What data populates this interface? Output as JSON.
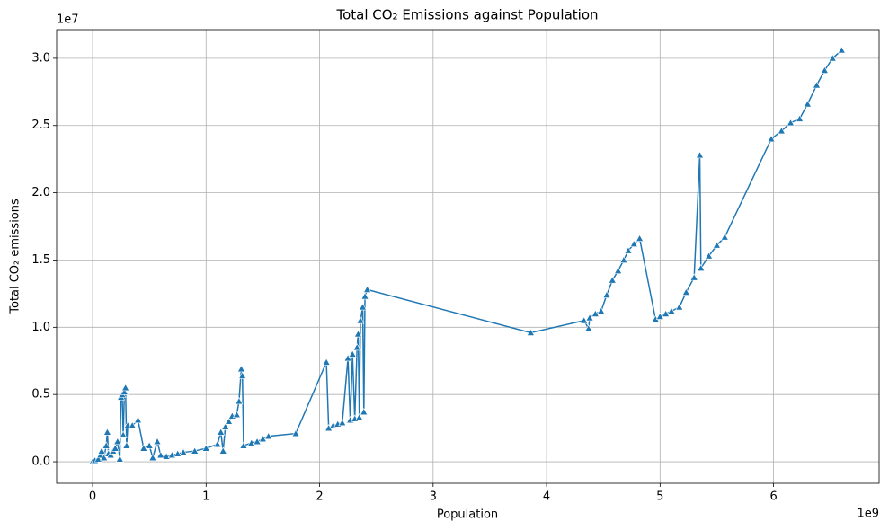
{
  "chart_data": {
    "type": "line",
    "title": "Total CO₂ Emissions against Population",
    "x_label": "Population",
    "y_label": "Total CO₂ emissions",
    "x_offset_text": "1e9",
    "y_offset_text": "1e7",
    "color": "#1f77b4",
    "marker": "triangle",
    "grid": true,
    "xlim": [
      -0.317,
      6.93
    ],
    "ylim": [
      -0.16,
      3.213
    ],
    "xticks": [
      0,
      1,
      2,
      3,
      4,
      5,
      6
    ],
    "yticks": [
      {
        "value": 0,
        "label": "0.0"
      },
      {
        "value": 0.5,
        "label": "0.5"
      },
      {
        "value": 1,
        "label": "1.0"
      },
      {
        "value": 1.5,
        "label": "1.5"
      },
      {
        "value": 2,
        "label": "2.0"
      },
      {
        "value": 2.5,
        "label": "2.5"
      },
      {
        "value": 3,
        "label": "3.0"
      }
    ],
    "x": [
      0,
      0.02,
      0.05,
      0.07,
      0.08,
      0.1,
      0.12,
      0.13,
      0.14,
      0.16,
      0.18,
      0.2,
      0.22,
      0.24,
      0.25,
      0.26,
      0.27,
      0.28,
      0.29,
      0.3,
      0.31,
      0.35,
      0.4,
      0.45,
      0.5,
      0.53,
      0.57,
      0.6,
      0.65,
      0.7,
      0.75,
      0.8,
      0.9,
      1.0,
      1.1,
      1.13,
      1.15,
      1.17,
      1.2,
      1.23,
      1.27,
      1.29,
      1.31,
      1.32,
      1.33,
      1.4,
      1.45,
      1.5,
      1.55,
      1.79,
      2.06,
      2.08,
      2.12,
      2.16,
      2.2,
      2.25,
      2.27,
      2.29,
      2.31,
      2.33,
      2.34,
      2.35,
      2.36,
      2.38,
      2.39,
      2.4,
      2.42,
      3.86,
      4.33,
      4.37,
      4.38,
      4.43,
      4.48,
      4.53,
      4.58,
      4.63,
      4.68,
      4.72,
      4.77,
      4.82,
      4.96,
      5.0,
      5.05,
      5.1,
      5.17,
      5.23,
      5.3,
      5.35,
      5.36,
      5.43,
      5.5,
      5.57,
      5.98,
      6.07,
      6.15,
      6.23,
      6.3,
      6.38,
      6.45,
      6.52,
      6.6
    ],
    "values": [
      0,
      0.01,
      0.02,
      0.05,
      0.08,
      0.03,
      0.12,
      0.22,
      0.06,
      0.05,
      0.08,
      0.1,
      0.15,
      0.02,
      0.48,
      0.5,
      0.2,
      0.52,
      0.55,
      0.12,
      0.27,
      0.27,
      0.31,
      0.1,
      0.12,
      0.03,
      0.15,
      0.05,
      0.04,
      0.05,
      0.06,
      0.07,
      0.08,
      0.1,
      0.13,
      0.22,
      0.08,
      0.26,
      0.3,
      0.34,
      0.35,
      0.45,
      0.69,
      0.64,
      0.12,
      0.14,
      0.15,
      0.17,
      0.19,
      0.21,
      0.74,
      0.25,
      0.27,
      0.28,
      0.29,
      0.77,
      0.31,
      0.8,
      0.32,
      0.85,
      0.95,
      0.33,
      1.05,
      1.15,
      0.37,
      1.23,
      1.28,
      0.96,
      1.05,
      0.99,
      1.07,
      1.1,
      1.12,
      1.24,
      1.35,
      1.42,
      1.5,
      1.57,
      1.62,
      1.66,
      1.06,
      1.08,
      1.1,
      1.12,
      1.15,
      1.26,
      1.37,
      2.28,
      1.44,
      1.53,
      1.61,
      1.67,
      2.4,
      2.46,
      2.52,
      2.55,
      2.66,
      2.8,
      2.91,
      3.0,
      3.06
    ]
  }
}
